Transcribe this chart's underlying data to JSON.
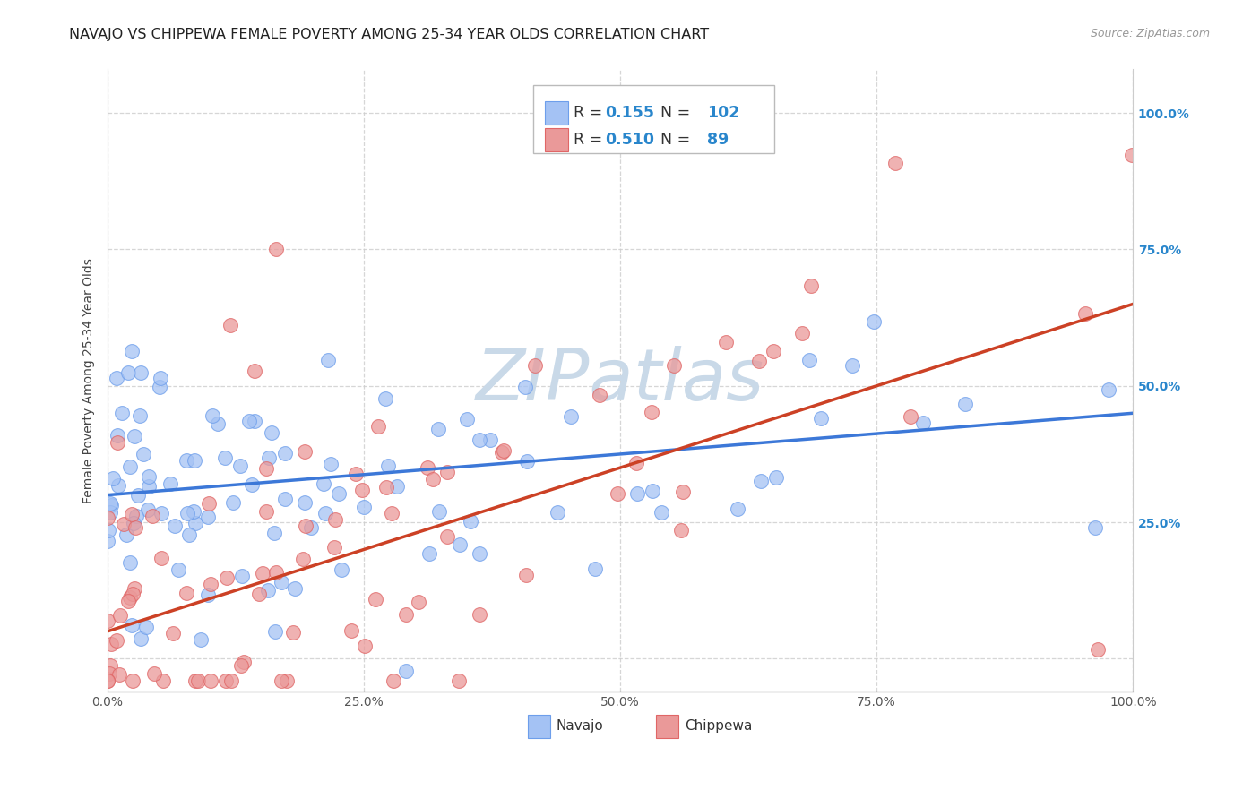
{
  "title": "NAVAJO VS CHIPPEWA FEMALE POVERTY AMONG 25-34 YEAR OLDS CORRELATION CHART",
  "source": "Source: ZipAtlas.com",
  "ylabel": "Female Poverty Among 25-34 Year Olds",
  "navajo_R": 0.155,
  "navajo_N": 102,
  "chippewa_R": 0.51,
  "chippewa_N": 89,
  "navajo_color": "#a4c2f4",
  "chippewa_color": "#ea9999",
  "navajo_edge_color": "#6d9eeb",
  "chippewa_edge_color": "#e06666",
  "navajo_line_color": "#3c78d8",
  "chippewa_line_color": "#cc4125",
  "background_color": "#ffffff",
  "watermark_text": "ZIPatlas",
  "watermark_color": "#c9d9e8",
  "xlim": [
    0,
    1
  ],
  "ylim": [
    -0.06,
    1.08
  ],
  "xticks": [
    0.0,
    0.25,
    0.5,
    0.75,
    1.0
  ],
  "yticks": [
    0.0,
    0.25,
    0.5,
    0.75,
    1.0
  ],
  "xticklabels": [
    "0.0%",
    "25.0%",
    "50.0%",
    "75.0%",
    "100.0%"
  ],
  "right_yticklabels": [
    "",
    "25.0%",
    "50.0%",
    "75.0%",
    "100.0%"
  ],
  "title_fontsize": 11.5,
  "axis_label_fontsize": 10,
  "tick_fontsize": 10,
  "right_ytick_color": "#2986cc",
  "legend_text_color": "#333333",
  "legend_value_color": "#2986cc"
}
